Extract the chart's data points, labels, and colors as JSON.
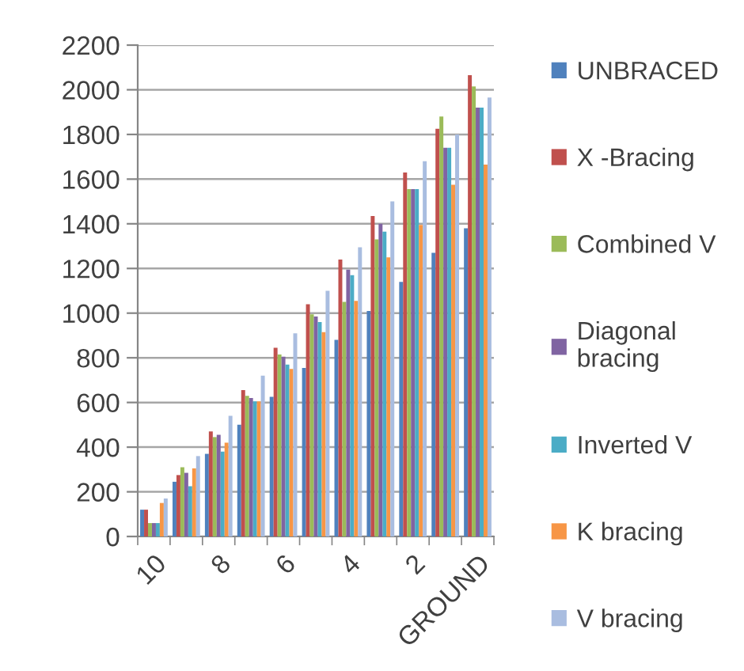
{
  "chart_data": {
    "type": "bar",
    "categories": [
      "10",
      null,
      "8",
      null,
      "6",
      null,
      "4",
      null,
      "2",
      null,
      "GROUND"
    ],
    "series": [
      {
        "name": "UNBRACED",
        "color": "#4f81bd",
        "values": [
          120,
          245,
          370,
          500,
          625,
          755,
          880,
          1010,
          1140,
          1270,
          1380
        ]
      },
      {
        "name": "X -Bracing",
        "color": "#c0504d",
        "values": [
          120,
          275,
          470,
          655,
          845,
          1040,
          1240,
          1435,
          1630,
          1825,
          2065
        ]
      },
      {
        "name": "Combined V",
        "color": "#9bbb59",
        "values": [
          60,
          310,
          445,
          630,
          815,
          995,
          1050,
          1330,
          1555,
          1880,
          2015
        ]
      },
      {
        "name": "Diagonal bracing",
        "color": "#8064a2",
        "values": [
          60,
          285,
          455,
          620,
          805,
          985,
          1195,
          1400,
          1555,
          1740,
          1920
        ]
      },
      {
        "name": "Inverted V",
        "color": "#4bacc6",
        "values": [
          60,
          225,
          380,
          605,
          770,
          960,
          1170,
          1365,
          1555,
          1740,
          1920
        ]
      },
      {
        "name": "K bracing",
        "color": "#f79646",
        "values": [
          150,
          305,
          420,
          605,
          750,
          915,
          1055,
          1250,
          1395,
          1575,
          1665
        ]
      },
      {
        "name": "V bracing",
        "color": "#a9bde0",
        "values": [
          170,
          360,
          540,
          720,
          910,
          1100,
          1295,
          1500,
          1680,
          1800,
          1965
        ]
      }
    ],
    "ylim": [
      0,
      2200
    ],
    "yticks": [
      0,
      200,
      400,
      600,
      800,
      1000,
      1200,
      1400,
      1600,
      1800,
      2000,
      2200
    ],
    "grid": "y",
    "legend": "right"
  }
}
